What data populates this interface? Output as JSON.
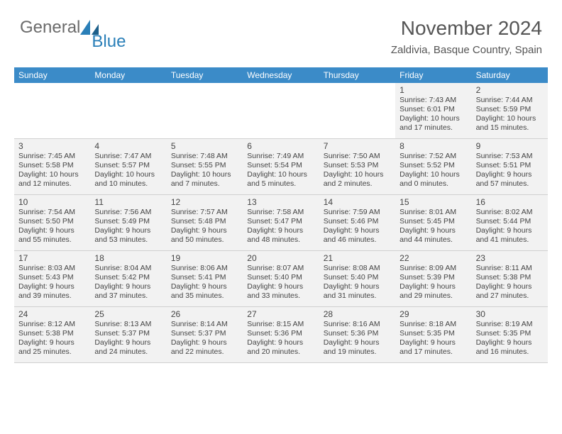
{
  "brand": {
    "general": "General",
    "blue": "Blue"
  },
  "header": {
    "monthTitle": "November 2024",
    "location": "Zaldivia, Basque Country, Spain"
  },
  "colors": {
    "headerBar": "#3b8bc8",
    "weekBg": "#f2f2f2",
    "rowBorder": "#d0d0d0",
    "text": "#444444",
    "logoGray": "#6b6b6b",
    "logoBlue": "#2a7fb8"
  },
  "daysOfWeek": [
    "Sunday",
    "Monday",
    "Tuesday",
    "Wednesday",
    "Thursday",
    "Friday",
    "Saturday"
  ],
  "weeks": [
    [
      {
        "empty": true
      },
      {
        "empty": true
      },
      {
        "empty": true
      },
      {
        "empty": true
      },
      {
        "empty": true
      },
      {
        "day": "1",
        "sunrise": "Sunrise: 7:43 AM",
        "sunset": "Sunset: 6:01 PM",
        "daylight1": "Daylight: 10 hours",
        "daylight2": "and 17 minutes."
      },
      {
        "day": "2",
        "sunrise": "Sunrise: 7:44 AM",
        "sunset": "Sunset: 5:59 PM",
        "daylight1": "Daylight: 10 hours",
        "daylight2": "and 15 minutes."
      }
    ],
    [
      {
        "day": "3",
        "sunrise": "Sunrise: 7:45 AM",
        "sunset": "Sunset: 5:58 PM",
        "daylight1": "Daylight: 10 hours",
        "daylight2": "and 12 minutes."
      },
      {
        "day": "4",
        "sunrise": "Sunrise: 7:47 AM",
        "sunset": "Sunset: 5:57 PM",
        "daylight1": "Daylight: 10 hours",
        "daylight2": "and 10 minutes."
      },
      {
        "day": "5",
        "sunrise": "Sunrise: 7:48 AM",
        "sunset": "Sunset: 5:55 PM",
        "daylight1": "Daylight: 10 hours",
        "daylight2": "and 7 minutes."
      },
      {
        "day": "6",
        "sunrise": "Sunrise: 7:49 AM",
        "sunset": "Sunset: 5:54 PM",
        "daylight1": "Daylight: 10 hours",
        "daylight2": "and 5 minutes."
      },
      {
        "day": "7",
        "sunrise": "Sunrise: 7:50 AM",
        "sunset": "Sunset: 5:53 PM",
        "daylight1": "Daylight: 10 hours",
        "daylight2": "and 2 minutes."
      },
      {
        "day": "8",
        "sunrise": "Sunrise: 7:52 AM",
        "sunset": "Sunset: 5:52 PM",
        "daylight1": "Daylight: 10 hours",
        "daylight2": "and 0 minutes."
      },
      {
        "day": "9",
        "sunrise": "Sunrise: 7:53 AM",
        "sunset": "Sunset: 5:51 PM",
        "daylight1": "Daylight: 9 hours",
        "daylight2": "and 57 minutes."
      }
    ],
    [
      {
        "day": "10",
        "sunrise": "Sunrise: 7:54 AM",
        "sunset": "Sunset: 5:50 PM",
        "daylight1": "Daylight: 9 hours",
        "daylight2": "and 55 minutes."
      },
      {
        "day": "11",
        "sunrise": "Sunrise: 7:56 AM",
        "sunset": "Sunset: 5:49 PM",
        "daylight1": "Daylight: 9 hours",
        "daylight2": "and 53 minutes."
      },
      {
        "day": "12",
        "sunrise": "Sunrise: 7:57 AM",
        "sunset": "Sunset: 5:48 PM",
        "daylight1": "Daylight: 9 hours",
        "daylight2": "and 50 minutes."
      },
      {
        "day": "13",
        "sunrise": "Sunrise: 7:58 AM",
        "sunset": "Sunset: 5:47 PM",
        "daylight1": "Daylight: 9 hours",
        "daylight2": "and 48 minutes."
      },
      {
        "day": "14",
        "sunrise": "Sunrise: 7:59 AM",
        "sunset": "Sunset: 5:46 PM",
        "daylight1": "Daylight: 9 hours",
        "daylight2": "and 46 minutes."
      },
      {
        "day": "15",
        "sunrise": "Sunrise: 8:01 AM",
        "sunset": "Sunset: 5:45 PM",
        "daylight1": "Daylight: 9 hours",
        "daylight2": "and 44 minutes."
      },
      {
        "day": "16",
        "sunrise": "Sunrise: 8:02 AM",
        "sunset": "Sunset: 5:44 PM",
        "daylight1": "Daylight: 9 hours",
        "daylight2": "and 41 minutes."
      }
    ],
    [
      {
        "day": "17",
        "sunrise": "Sunrise: 8:03 AM",
        "sunset": "Sunset: 5:43 PM",
        "daylight1": "Daylight: 9 hours",
        "daylight2": "and 39 minutes."
      },
      {
        "day": "18",
        "sunrise": "Sunrise: 8:04 AM",
        "sunset": "Sunset: 5:42 PM",
        "daylight1": "Daylight: 9 hours",
        "daylight2": "and 37 minutes."
      },
      {
        "day": "19",
        "sunrise": "Sunrise: 8:06 AM",
        "sunset": "Sunset: 5:41 PM",
        "daylight1": "Daylight: 9 hours",
        "daylight2": "and 35 minutes."
      },
      {
        "day": "20",
        "sunrise": "Sunrise: 8:07 AM",
        "sunset": "Sunset: 5:40 PM",
        "daylight1": "Daylight: 9 hours",
        "daylight2": "and 33 minutes."
      },
      {
        "day": "21",
        "sunrise": "Sunrise: 8:08 AM",
        "sunset": "Sunset: 5:40 PM",
        "daylight1": "Daylight: 9 hours",
        "daylight2": "and 31 minutes."
      },
      {
        "day": "22",
        "sunrise": "Sunrise: 8:09 AM",
        "sunset": "Sunset: 5:39 PM",
        "daylight1": "Daylight: 9 hours",
        "daylight2": "and 29 minutes."
      },
      {
        "day": "23",
        "sunrise": "Sunrise: 8:11 AM",
        "sunset": "Sunset: 5:38 PM",
        "daylight1": "Daylight: 9 hours",
        "daylight2": "and 27 minutes."
      }
    ],
    [
      {
        "day": "24",
        "sunrise": "Sunrise: 8:12 AM",
        "sunset": "Sunset: 5:38 PM",
        "daylight1": "Daylight: 9 hours",
        "daylight2": "and 25 minutes."
      },
      {
        "day": "25",
        "sunrise": "Sunrise: 8:13 AM",
        "sunset": "Sunset: 5:37 PM",
        "daylight1": "Daylight: 9 hours",
        "daylight2": "and 24 minutes."
      },
      {
        "day": "26",
        "sunrise": "Sunrise: 8:14 AM",
        "sunset": "Sunset: 5:37 PM",
        "daylight1": "Daylight: 9 hours",
        "daylight2": "and 22 minutes."
      },
      {
        "day": "27",
        "sunrise": "Sunrise: 8:15 AM",
        "sunset": "Sunset: 5:36 PM",
        "daylight1": "Daylight: 9 hours",
        "daylight2": "and 20 minutes."
      },
      {
        "day": "28",
        "sunrise": "Sunrise: 8:16 AM",
        "sunset": "Sunset: 5:36 PM",
        "daylight1": "Daylight: 9 hours",
        "daylight2": "and 19 minutes."
      },
      {
        "day": "29",
        "sunrise": "Sunrise: 8:18 AM",
        "sunset": "Sunset: 5:35 PM",
        "daylight1": "Daylight: 9 hours",
        "daylight2": "and 17 minutes."
      },
      {
        "day": "30",
        "sunrise": "Sunrise: 8:19 AM",
        "sunset": "Sunset: 5:35 PM",
        "daylight1": "Daylight: 9 hours",
        "daylight2": "and 16 minutes."
      }
    ]
  ]
}
